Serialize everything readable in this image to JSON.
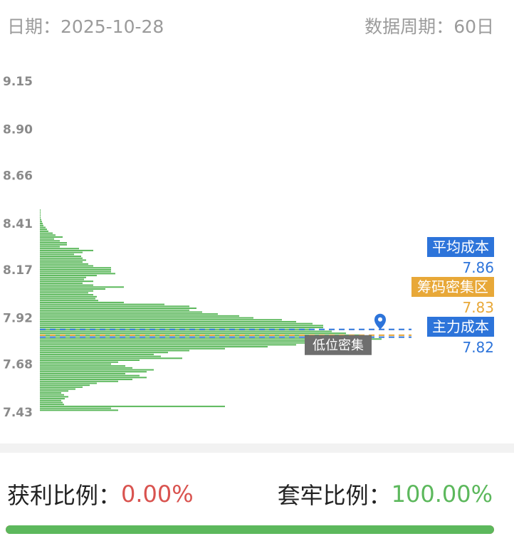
{
  "header": {
    "date_label": "日期：",
    "date_value": "2025-10-28",
    "period_label": "数据周期：",
    "period_value": "60日"
  },
  "chart_data": {
    "type": "bar",
    "orientation": "horizontal",
    "title": "",
    "xlabel": "",
    "ylabel": "",
    "y_ticks": [
      "9.15",
      "8.90",
      "8.66",
      "8.41",
      "8.17",
      "7.92",
      "7.68",
      "7.43"
    ],
    "ylim": [
      7.43,
      9.15
    ],
    "bar_color": "#5cb85c",
    "price_levels": [
      8.48,
      8.47,
      8.46,
      8.45,
      8.44,
      8.43,
      8.42,
      8.41,
      8.4,
      8.39,
      8.38,
      8.37,
      8.36,
      8.35,
      8.34,
      8.33,
      8.32,
      8.31,
      8.3,
      8.29,
      8.28,
      8.27,
      8.26,
      8.25,
      8.24,
      8.23,
      8.22,
      8.21,
      8.2,
      8.19,
      8.18,
      8.17,
      8.16,
      8.15,
      8.14,
      8.13,
      8.12,
      8.11,
      8.1,
      8.09,
      8.08,
      8.07,
      8.06,
      8.05,
      8.04,
      8.03,
      8.02,
      8.01,
      8.0,
      7.99,
      7.98,
      7.97,
      7.96,
      7.95,
      7.94,
      7.93,
      7.92,
      7.91,
      7.9,
      7.89,
      7.88,
      7.87,
      7.86,
      7.85,
      7.84,
      7.83,
      7.82,
      7.81,
      7.8,
      7.79,
      7.78,
      7.77,
      7.76,
      7.75,
      7.74,
      7.73,
      7.72,
      7.71,
      7.7,
      7.69,
      7.68,
      7.67,
      7.66,
      7.65,
      7.64,
      7.63,
      7.62,
      7.61,
      7.6,
      7.59,
      7.58,
      7.57,
      7.56,
      7.55,
      7.54,
      7.53,
      7.52,
      7.51,
      7.5,
      7.49,
      7.48,
      7.47,
      7.46,
      7.45,
      7.44
    ],
    "volumes": [
      1,
      1,
      1,
      1,
      1,
      2,
      3,
      4,
      5,
      8,
      10,
      12,
      18,
      22,
      32,
      20,
      28,
      38,
      38,
      28,
      55,
      75,
      60,
      48,
      58,
      60,
      65,
      60,
      68,
      75,
      100,
      100,
      100,
      106,
      80,
      65,
      62,
      75,
      60,
      75,
      118,
      92,
      75,
      68,
      75,
      80,
      78,
      82,
      118,
      175,
      210,
      220,
      210,
      228,
      250,
      280,
      300,
      340,
      360,
      383,
      398,
      398,
      380,
      410,
      430,
      450,
      470,
      480,
      440,
      400,
      360,
      320,
      260,
      210,
      180,
      160,
      170,
      200,
      140,
      110,
      100,
      120,
      130,
      160,
      150,
      120,
      140,
      150,
      130,
      110,
      80,
      70,
      60,
      50,
      40,
      30,
      34,
      40,
      35,
      30,
      32,
      34,
      260,
      100,
      110
    ],
    "avg_cost": {
      "label": "平均成本",
      "value": "7.86",
      "price": 7.86,
      "color": "#2d74da"
    },
    "concentration": {
      "label": "筹码密集区",
      "value": "7.83",
      "price": 7.83,
      "color": "#e8a838"
    },
    "main_cost": {
      "label": "主力成本",
      "value": "7.82",
      "price": 7.82,
      "color": "#2d74da"
    },
    "annotation": {
      "label": "低位密集",
      "price": 7.86
    }
  },
  "footer": {
    "profit_label": "获利比例：",
    "profit_value": "0.00%",
    "trapped_label": "套牢比例：",
    "trapped_value": "100.00%",
    "trapped_fraction": 1.0,
    "profit_color": "#d9534f",
    "trapped_color": "#5cb85c"
  }
}
